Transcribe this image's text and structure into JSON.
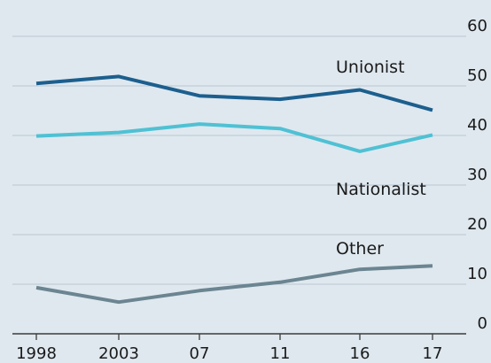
{
  "chart_data": {
    "type": "line",
    "categories": [
      "1998",
      "2003",
      "07",
      "11",
      "16",
      "17"
    ],
    "yticks": [
      "0",
      "10",
      "20",
      "30",
      "40",
      "50",
      "60"
    ],
    "ylim": [
      0,
      60
    ],
    "grid": true,
    "y_axis_side": "right",
    "series": [
      {
        "name": "Unionist",
        "values": [
          50.5,
          51.9,
          48.0,
          47.3,
          49.2,
          45.1
        ],
        "color": "#1c5f8e"
      },
      {
        "name": "Nationalist",
        "values": [
          39.9,
          40.6,
          42.3,
          41.4,
          36.8,
          40.1
        ],
        "color": "#4fc1d3"
      },
      {
        "name": "Other",
        "values": [
          9.3,
          6.4,
          8.7,
          10.4,
          13.0,
          13.7
        ],
        "color": "#6b8591"
      }
    ],
    "colors": {
      "background": "#dfe8ef",
      "gridline": "#b9c6d0",
      "baseline": "#3b3b3b"
    }
  }
}
